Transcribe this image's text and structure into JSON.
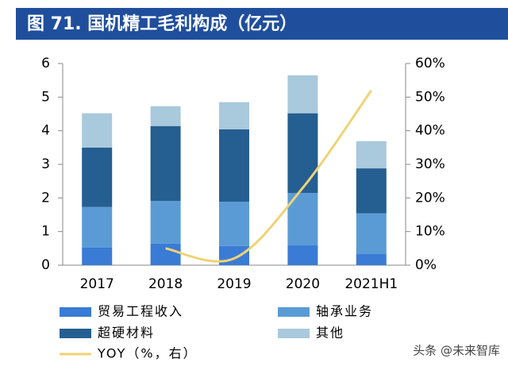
{
  "chart_data": {
    "type": "stacked-bar-line",
    "title": "图 71. 国机精工毛利构成（亿元）",
    "categories": [
      "2017",
      "2018",
      "2019",
      "2020",
      "2021H1"
    ],
    "series": [
      {
        "name": "贸易工程收入",
        "color": "#3a7bd5",
        "values": [
          0.52,
          0.64,
          0.57,
          0.59,
          0.33
        ]
      },
      {
        "name": "轴承业务",
        "color": "#5b9bd5",
        "values": [
          1.21,
          1.27,
          1.32,
          1.56,
          1.21
        ]
      },
      {
        "name": "超硬材料",
        "color": "#255e91",
        "values": [
          1.77,
          2.23,
          2.15,
          2.37,
          1.34
        ]
      },
      {
        "name": "其他",
        "color": "#a9c9dc",
        "values": [
          1.02,
          0.59,
          0.81,
          1.13,
          0.81
        ]
      },
      {
        "name": "YOY（%，右）",
        "color": "#efd374",
        "axis": "y2",
        "values": [
          null,
          5,
          2,
          23,
          52
        ]
      }
    ],
    "ylim": [
      0,
      6
    ],
    "yticks": [
      0,
      1,
      2,
      3,
      4,
      5,
      6
    ],
    "y2lim": [
      0,
      60
    ],
    "y2ticks": [
      {
        "value": 0,
        "label": "0%"
      },
      {
        "value": 10,
        "label": "10%"
      },
      {
        "value": 20,
        "label": "20%"
      },
      {
        "value": 30,
        "label": "30%"
      },
      {
        "value": 40,
        "label": "40%"
      },
      {
        "value": 50,
        "label": "50%"
      },
      {
        "value": 60,
        "label": "60%"
      }
    ]
  },
  "watermark": "头条 @未来智库"
}
